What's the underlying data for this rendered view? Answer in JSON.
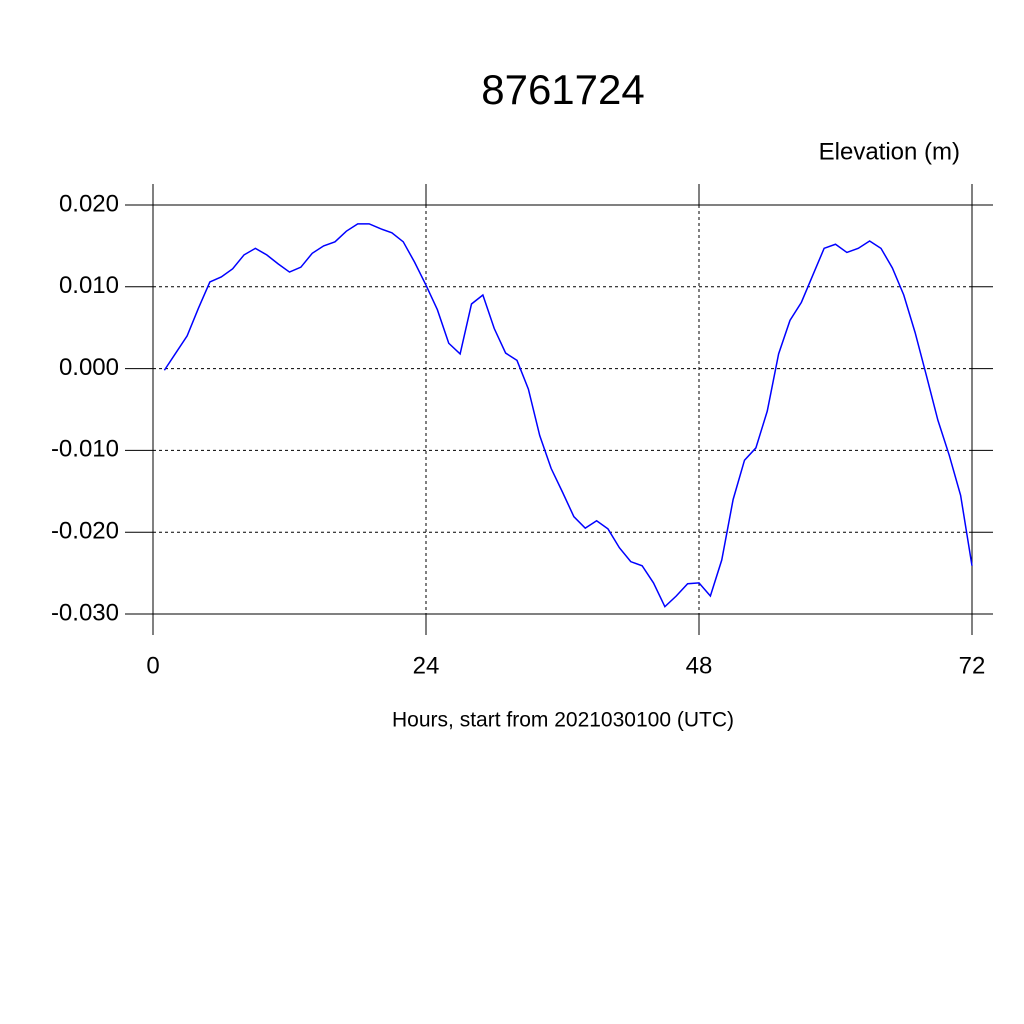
{
  "chart_data": {
    "type": "line",
    "title": "8761724",
    "y_axis_label": "Elevation (m)",
    "x_axis_label": "Hours, start from 2021030100 (UTC)",
    "color": "#0000ff",
    "grid": true,
    "x": [
      1,
      2,
      3,
      4,
      5,
      6,
      7,
      8,
      9,
      10,
      11,
      12,
      13,
      14,
      15,
      16,
      17,
      18,
      19,
      20,
      21,
      22,
      23,
      24,
      25,
      26,
      27,
      28,
      29,
      30,
      31,
      32,
      33,
      34,
      35,
      36,
      37,
      38,
      39,
      40,
      41,
      42,
      43,
      44,
      45,
      46,
      47,
      48,
      49,
      50,
      51,
      52,
      53,
      54,
      55,
      56,
      57,
      58,
      59,
      60,
      61,
      62,
      63,
      64,
      65,
      66,
      67,
      68,
      69,
      70,
      71,
      72
    ],
    "values": [
      -0.0002,
      0.0019,
      0.004,
      0.0074,
      0.0106,
      0.0112,
      0.0122,
      0.0139,
      0.0147,
      0.0139,
      0.0128,
      0.0118,
      0.0124,
      0.0141,
      0.015,
      0.0155,
      0.0168,
      0.0177,
      0.0177,
      0.0171,
      0.0166,
      0.0155,
      0.013,
      0.0102,
      0.0072,
      0.0031,
      0.0018,
      0.0079,
      0.009,
      0.0049,
      0.0019,
      0.001,
      -0.0025,
      -0.0082,
      -0.0122,
      -0.0151,
      -0.0181,
      -0.0195,
      -0.0186,
      -0.0196,
      -0.0219,
      -0.0236,
      -0.0241,
      -0.0262,
      -0.0291,
      -0.0278,
      -0.0263,
      -0.0262,
      -0.0278,
      -0.0234,
      -0.016,
      -0.0112,
      -0.0097,
      -0.0052,
      0.0018,
      0.0059,
      0.0081,
      0.0114,
      0.0147,
      0.0152,
      0.0142,
      0.0147,
      0.0156,
      0.0147,
      0.0123,
      0.009,
      0.0044,
      -0.0009,
      -0.0063,
      -0.0106,
      -0.0155,
      -0.0241
    ],
    "xlim": [
      0,
      72
    ],
    "xticks": [
      0,
      24,
      48,
      72
    ],
    "ylim": [
      -0.03,
      0.02
    ],
    "yticks": [
      {
        "value": -0.03,
        "label": "-0.030"
      },
      {
        "value": -0.02,
        "label": "-0.020"
      },
      {
        "value": -0.01,
        "label": "-0.010"
      },
      {
        "value": 0,
        "label": "0.000"
      },
      {
        "value": 0.01,
        "label": "0.010"
      },
      {
        "value": 0.02,
        "label": "0.020"
      }
    ]
  }
}
